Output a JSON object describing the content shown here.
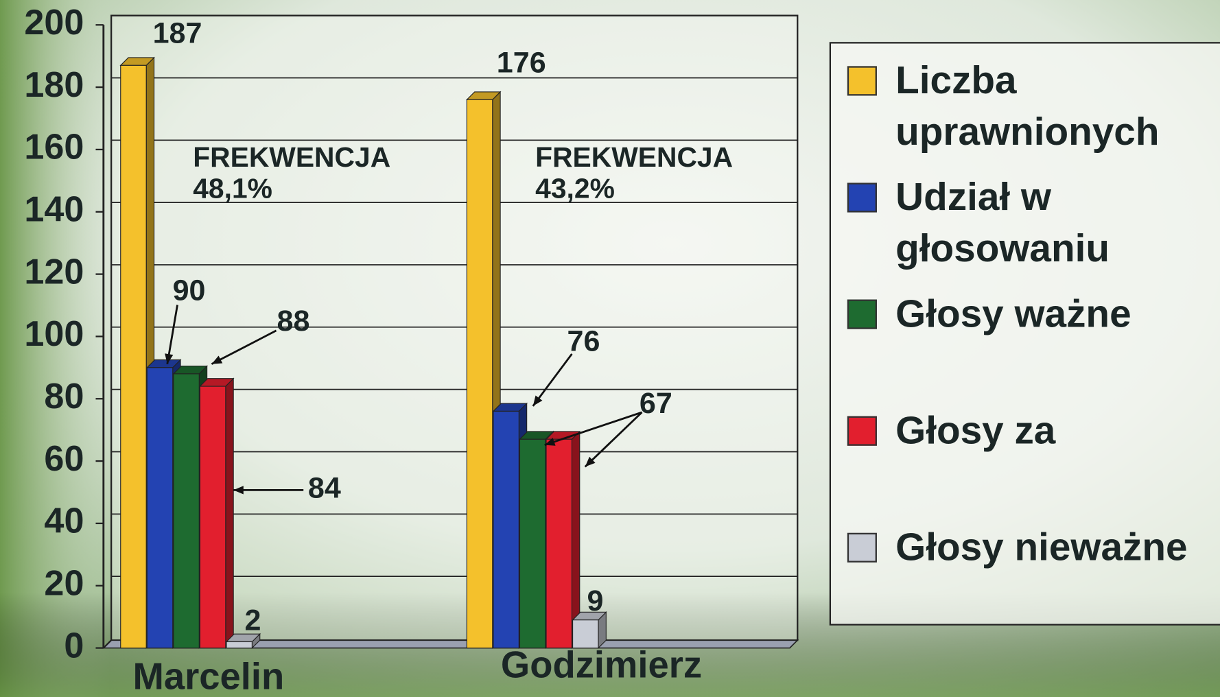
{
  "chart_data": {
    "type": "bar3d",
    "categories": [
      "Marcelin",
      "Godzimierz"
    ],
    "series": [
      {
        "name": "Liczba uprawnionych",
        "color": "#f4c12c",
        "values": [
          187,
          176
        ]
      },
      {
        "name": "Udział w głosowaniu",
        "color": "#2343b2",
        "values": [
          90,
          76
        ]
      },
      {
        "name": "Głosy ważne",
        "color": "#1e6b30",
        "values": [
          88,
          67
        ]
      },
      {
        "name": "Głosy za",
        "color": "#e21f2e",
        "values": [
          84,
          67
        ]
      },
      {
        "name": "Głosy nieważne",
        "color": "#c9cdd6",
        "values": [
          2,
          9
        ]
      }
    ],
    "annotations": [
      "FREKWENCJA",
      "48,1%",
      "FREKWENCJA",
      "43,2%"
    ],
    "ylim": [
      0,
      200
    ],
    "yticks": [
      0,
      20,
      40,
      60,
      80,
      100,
      120,
      140,
      160,
      180,
      200
    ],
    "grid": true,
    "legend": "right"
  }
}
